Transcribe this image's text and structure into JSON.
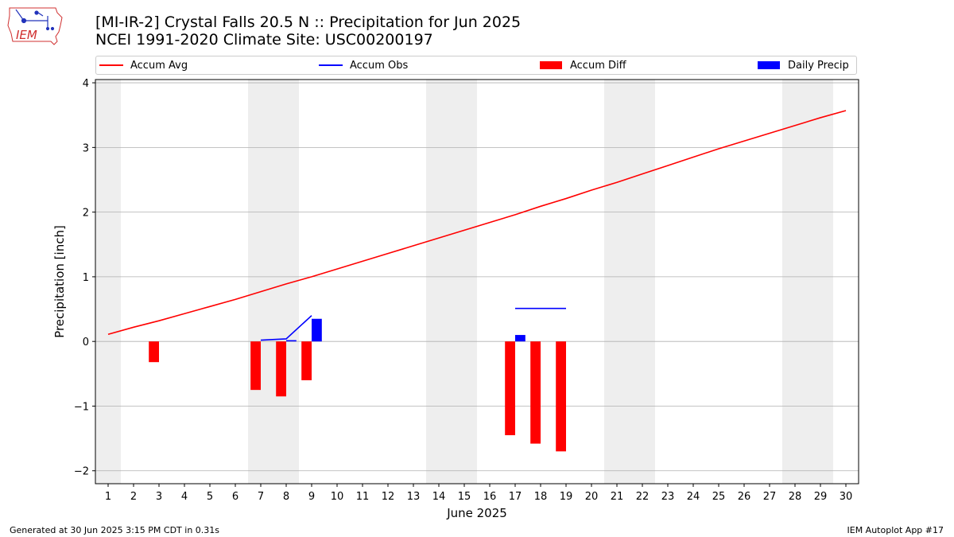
{
  "header": {
    "title_line1": "[MI-IR-2] Crystal Falls 20.5 N :: Precipitation for Jun 2025",
    "title_line2": "NCEI 1991-2020 Climate Site: USC00200197",
    "logo_text": "IEM",
    "logo_icon": "iowa-state-outline-with-weather-station-icon"
  },
  "legend": [
    {
      "label": "Accum Avg",
      "kind": "line",
      "color": "#ff0000"
    },
    {
      "label": "Accum Obs",
      "kind": "line",
      "color": "#0000ff"
    },
    {
      "label": "Accum Diff",
      "kind": "box",
      "color": "#ff0000"
    },
    {
      "label": "Daily Precip",
      "kind": "box",
      "color": "#0000ff"
    }
  ],
  "footer": {
    "generated": "Generated at 30 Jun 2025 3:15 PM CDT in 0.31s",
    "app": "IEM Autoplot App #17"
  },
  "colors": {
    "accum_avg": "#ff0000",
    "accum_obs": "#0000ff",
    "accum_diff": "#ff0000",
    "daily_precip": "#0000ff",
    "weekend_shade": "#eeeeee",
    "grid": "#b0b0b0"
  },
  "chart_data": {
    "type": "bar",
    "xlabel": "June 2025",
    "ylabel": "Precipitation [inch]",
    "x": [
      1,
      2,
      3,
      4,
      5,
      6,
      7,
      8,
      9,
      10,
      11,
      12,
      13,
      14,
      15,
      16,
      17,
      18,
      19,
      20,
      21,
      22,
      23,
      24,
      25,
      26,
      27,
      28,
      29,
      30
    ],
    "xlim": [
      0.5,
      30.5
    ],
    "ylim": [
      -2.2,
      4.05
    ],
    "yticks": [
      -2,
      -1,
      0,
      1,
      2,
      3,
      4
    ],
    "ytick_labels": [
      "−2",
      "−1",
      "0",
      "1",
      "2",
      "3",
      "4"
    ],
    "grid": "horizontal",
    "legend_position": "top",
    "weekend_shading": [
      [
        0.5,
        1.5
      ],
      [
        6.5,
        8.5
      ],
      [
        13.5,
        15.5
      ],
      [
        20.5,
        22.5
      ],
      [
        27.5,
        29.5
      ]
    ],
    "series": [
      {
        "name": "Accum Avg",
        "kind": "line",
        "x": [
          1,
          2,
          3,
          4,
          5,
          6,
          7,
          8,
          9,
          10,
          11,
          12,
          13,
          14,
          15,
          16,
          17,
          18,
          19,
          20,
          21,
          22,
          23,
          24,
          25,
          26,
          27,
          28,
          29,
          30
        ],
        "values": [
          0.11,
          0.22,
          0.32,
          0.43,
          0.54,
          0.65,
          0.77,
          0.89,
          1.0,
          1.12,
          1.24,
          1.36,
          1.48,
          1.6,
          1.72,
          1.84,
          1.96,
          2.09,
          2.21,
          2.34,
          2.46,
          2.59,
          2.72,
          2.85,
          2.98,
          3.1,
          3.22,
          3.34,
          3.46,
          3.57
        ]
      },
      {
        "name": "Accum Obs",
        "kind": "line",
        "segments": [
          {
            "x": [
              7,
              8,
              9
            ],
            "values": [
              0.02,
              0.04,
              0.4
            ]
          },
          {
            "x": [
              17,
              18,
              19
            ],
            "values": [
              0.51,
              0.51,
              0.51
            ]
          }
        ]
      },
      {
        "name": "Accum Diff",
        "kind": "bar",
        "x": [
          3,
          7,
          8,
          9,
          17,
          18,
          19
        ],
        "values": [
          -0.32,
          -0.75,
          -0.85,
          -0.6,
          -1.45,
          -1.58,
          -1.7
        ]
      },
      {
        "name": "Daily Precip",
        "kind": "bar",
        "x": [
          8,
          9,
          17
        ],
        "values": [
          0.02,
          0.35,
          0.1
        ]
      }
    ]
  }
}
